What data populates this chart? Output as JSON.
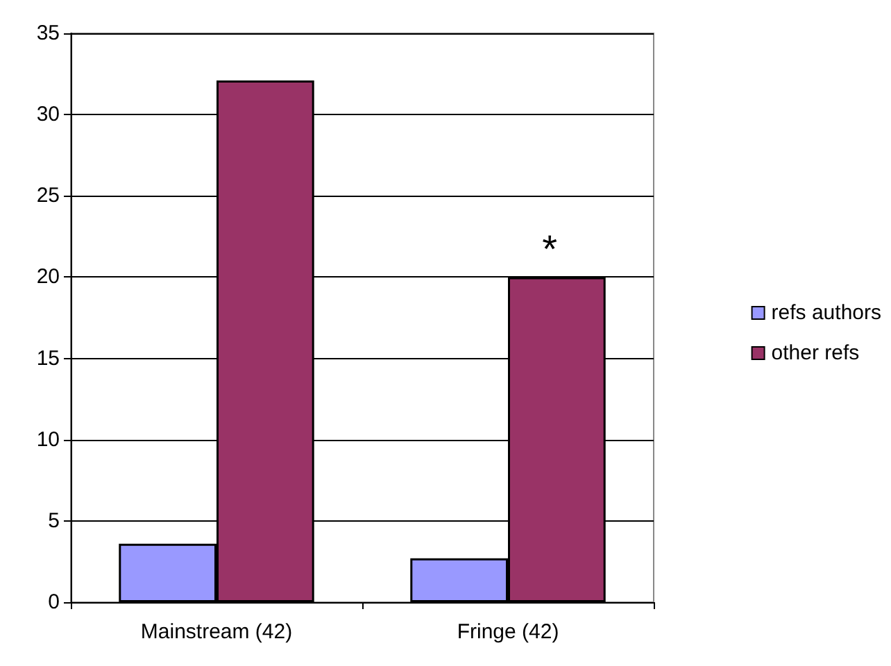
{
  "chart_data": {
    "type": "bar",
    "categories": [
      "Mainstream (42)",
      "Fringe (42)"
    ],
    "series": [
      {
        "name": "refs authors",
        "color": "#9999ff",
        "values": [
          3.6,
          2.7
        ]
      },
      {
        "name": "other refs",
        "color": "#993366",
        "values": [
          32.1,
          20.0
        ]
      }
    ],
    "ylim": [
      0,
      35
    ],
    "yticks": [
      0,
      5,
      10,
      15,
      20,
      25,
      30,
      35
    ],
    "grid": "y",
    "legend": "right",
    "annotations": [
      {
        "text": "*",
        "x": "Fringe (42)",
        "y": 20
      }
    ]
  }
}
